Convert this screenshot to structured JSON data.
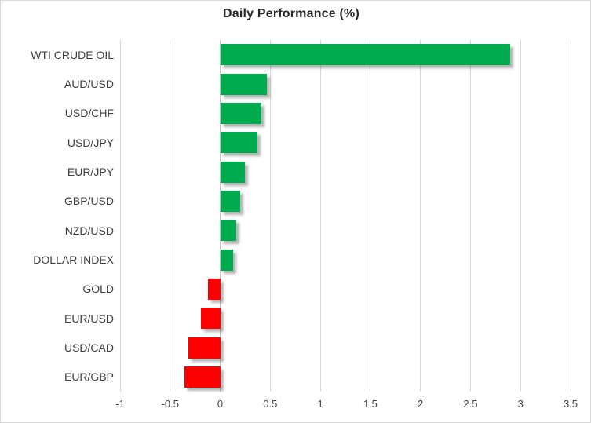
{
  "title": "Daily Performance (%)",
  "colors": {
    "positive": "#00AB4F",
    "negative": "#FF0000",
    "gridline": "#D6D6D6",
    "zero_axis": "#BFBFBF",
    "label_text": "#3D3D3D",
    "title_text": "#262626",
    "frame_border": "#D9D9D9"
  },
  "chart_data": {
    "type": "bar",
    "orientation": "horizontal",
    "title": "Daily Performance (%)",
    "categories": [
      "WTI CRUDE OIL",
      "AUD/USD",
      "USD/CHF",
      "USD/JPY",
      "EUR/JPY",
      "GBP/USD",
      "NZD/USD",
      "DOLLAR INDEX",
      "GOLD",
      "EUR/USD",
      "USD/CAD",
      "EUR/GBP"
    ],
    "values": [
      2.9,
      0.47,
      0.41,
      0.37,
      0.25,
      0.2,
      0.16,
      0.13,
      -0.12,
      -0.19,
      -0.32,
      -0.36
    ],
    "xlabel": "",
    "ylabel": "",
    "xlim": [
      -1,
      3.5
    ],
    "xticks": [
      -1,
      -0.5,
      0,
      0.5,
      1,
      1.5,
      2,
      2.5,
      3,
      3.5
    ],
    "grid": true,
    "legend": false,
    "bar_shadow": true
  }
}
